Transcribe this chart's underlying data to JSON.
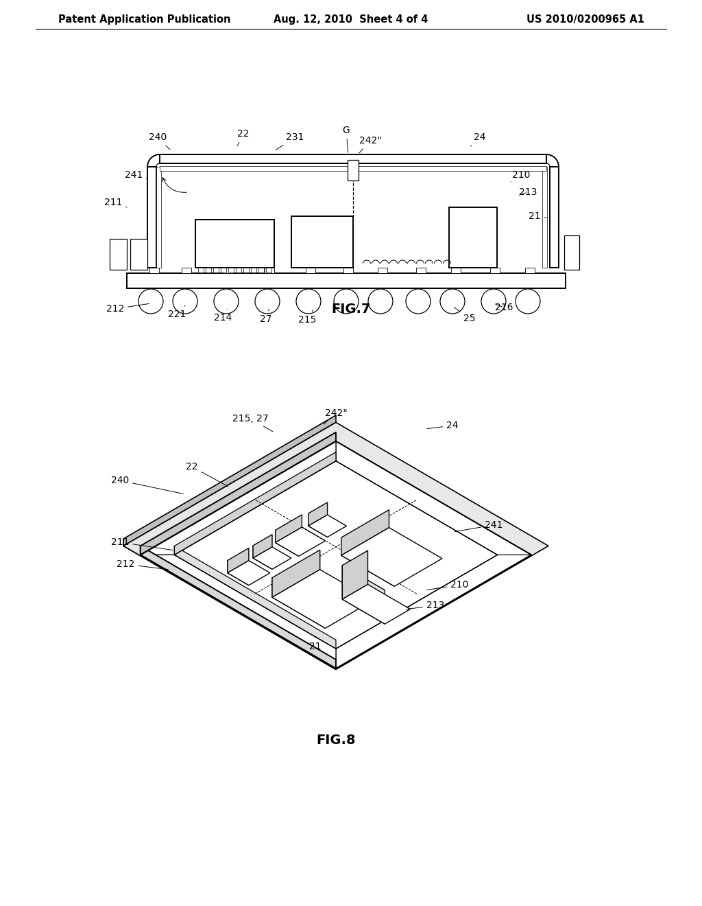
{
  "background": "#ffffff",
  "header_left": "Patent Application Publication",
  "header_center": "Aug. 12, 2010  Sheet 4 of 4",
  "header_right": "US 2010/0200965 A1",
  "fig7_label": "FIG.7",
  "fig8_label": "FIG.8",
  "line_color": "#000000",
  "text_color": "#000000",
  "font_size_header": 10.5,
  "font_size_label": 14,
  "font_size_ref": 10
}
